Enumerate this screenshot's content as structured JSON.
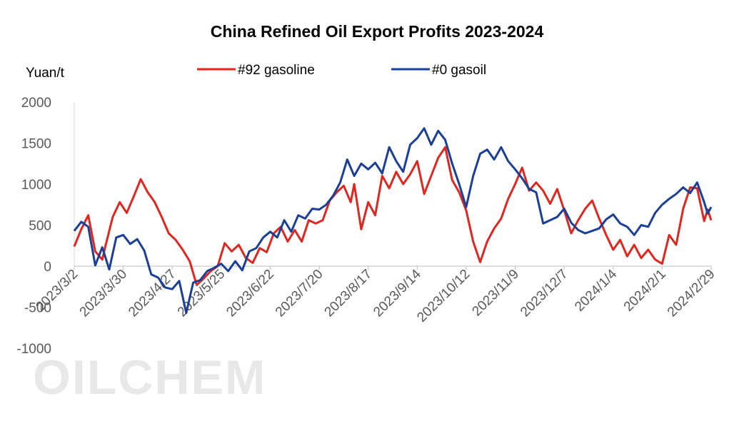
{
  "watermark": "OILCHEM",
  "colors": {
    "gasoline": "#e0261f",
    "gasoil": "#1a3f96"
  },
  "chart_data": {
    "type": "line",
    "title": "China Refined Oil Export Profits 2023-2024",
    "ylabel": "Yuan/t",
    "xlabel": "",
    "ylim": [
      -1000,
      2000
    ],
    "yticks": [
      -1000,
      -500,
      0,
      500,
      1000,
      1500,
      2000
    ],
    "x_tick_labels": [
      "2023/3/2",
      "2023/3/30",
      "2023/4/27",
      "2023/5/25",
      "2023/6/22",
      "2023/7/20",
      "2023/8/17",
      "2023/9/14",
      "2023/10/12",
      "2023/11/9",
      "2023/12/7",
      "2024/1/4",
      "2024/2/1",
      "2024/2/29"
    ],
    "x_range": [
      "2023/3/2",
      "2024/2/29"
    ],
    "grid": false,
    "legend": "top",
    "series": [
      {
        "name": "#92 gasoline",
        "color": "#e0261f",
        "points": [
          [
            "2023/3/2",
            240
          ],
          [
            "2023/3/6",
            450
          ],
          [
            "2023/3/10",
            620
          ],
          [
            "2023/3/14",
            180
          ],
          [
            "2023/3/18",
            80
          ],
          [
            "2023/3/20",
            260
          ],
          [
            "2023/3/24",
            600
          ],
          [
            "2023/3/28",
            780
          ],
          [
            "2023/4/1",
            650
          ],
          [
            "2023/4/5",
            850
          ],
          [
            "2023/4/9",
            1060
          ],
          [
            "2023/4/13",
            900
          ],
          [
            "2023/4/17",
            780
          ],
          [
            "2023/4/21",
            600
          ],
          [
            "2023/4/25",
            400
          ],
          [
            "2023/4/29",
            320
          ],
          [
            "2023/5/3",
            200
          ],
          [
            "2023/5/7",
            60
          ],
          [
            "2023/5/11",
            -230
          ],
          [
            "2023/5/15",
            -150
          ],
          [
            "2023/5/19",
            -60
          ],
          [
            "2023/5/23",
            0
          ],
          [
            "2023/5/27",
            280
          ],
          [
            "2023/5/31",
            180
          ],
          [
            "2023/6/4",
            260
          ],
          [
            "2023/6/8",
            100
          ],
          [
            "2023/6/12",
            40
          ],
          [
            "2023/6/16",
            220
          ],
          [
            "2023/6/20",
            170
          ],
          [
            "2023/6/24",
            400
          ],
          [
            "2023/6/28",
            480
          ],
          [
            "2023/7/2",
            300
          ],
          [
            "2023/7/6",
            440
          ],
          [
            "2023/7/10",
            300
          ],
          [
            "2023/7/14",
            560
          ],
          [
            "2023/7/18",
            520
          ],
          [
            "2023/7/22",
            560
          ],
          [
            "2023/7/26",
            800
          ],
          [
            "2023/7/30",
            900
          ],
          [
            "2023/8/3",
            980
          ],
          [
            "2023/8/7",
            780
          ],
          [
            "2023/8/9",
            1000
          ],
          [
            "2023/8/13",
            450
          ],
          [
            "2023/8/17",
            780
          ],
          [
            "2023/8/21",
            620
          ],
          [
            "2023/8/25",
            1100
          ],
          [
            "2023/8/29",
            950
          ],
          [
            "2023/9/2",
            1150
          ],
          [
            "2023/9/6",
            1000
          ],
          [
            "2023/9/10",
            1120
          ],
          [
            "2023/9/14",
            1280
          ],
          [
            "2023/9/18",
            880
          ],
          [
            "2023/9/22",
            1100
          ],
          [
            "2023/9/26",
            1320
          ],
          [
            "2023/9/30",
            1450
          ],
          [
            "2023/10/4",
            1050
          ],
          [
            "2023/10/8",
            900
          ],
          [
            "2023/10/12",
            680
          ],
          [
            "2023/10/16",
            300
          ],
          [
            "2023/10/20",
            50
          ],
          [
            "2023/10/24",
            300
          ],
          [
            "2023/10/28",
            460
          ],
          [
            "2023/11/1",
            580
          ],
          [
            "2023/11/5",
            820
          ],
          [
            "2023/11/9",
            1000
          ],
          [
            "2023/11/13",
            1200
          ],
          [
            "2023/11/17",
            920
          ],
          [
            "2023/11/21",
            1020
          ],
          [
            "2023/11/25",
            920
          ],
          [
            "2023/11/29",
            760
          ],
          [
            "2023/12/3",
            940
          ],
          [
            "2023/12/7",
            680
          ],
          [
            "2023/12/11",
            400
          ],
          [
            "2023/12/15",
            560
          ],
          [
            "2023/12/19",
            700
          ],
          [
            "2023/12/23",
            800
          ],
          [
            "2023/12/27",
            580
          ],
          [
            "2023/12/31",
            380
          ],
          [
            "2024/1/4",
            200
          ],
          [
            "2024/1/8",
            320
          ],
          [
            "2024/1/12",
            120
          ],
          [
            "2024/1/16",
            260
          ],
          [
            "2024/1/20",
            100
          ],
          [
            "2024/1/24",
            200
          ],
          [
            "2024/1/28",
            80
          ],
          [
            "2024/2/1",
            30
          ],
          [
            "2024/2/5",
            380
          ],
          [
            "2024/2/9",
            260
          ],
          [
            "2024/2/13",
            700
          ],
          [
            "2024/2/17",
            960
          ],
          [
            "2024/2/21",
            950
          ],
          [
            "2024/2/25",
            550
          ],
          [
            "2024/2/27",
            690
          ],
          [
            "2024/2/29",
            560
          ]
        ]
      },
      {
        "name": "#0 gasoil",
        "color": "#1a3f96",
        "points": [
          [
            "2023/3/2",
            430
          ],
          [
            "2023/3/6",
            540
          ],
          [
            "2023/3/10",
            480
          ],
          [
            "2023/3/14",
            10
          ],
          [
            "2023/3/18",
            230
          ],
          [
            "2023/3/22",
            -40
          ],
          [
            "2023/3/26",
            350
          ],
          [
            "2023/3/30",
            380
          ],
          [
            "2023/4/3",
            270
          ],
          [
            "2023/4/7",
            330
          ],
          [
            "2023/4/11",
            190
          ],
          [
            "2023/4/15",
            -100
          ],
          [
            "2023/4/19",
            -140
          ],
          [
            "2023/4/23",
            -260
          ],
          [
            "2023/4/27",
            -280
          ],
          [
            "2023/5/1",
            -180
          ],
          [
            "2023/5/5",
            -570
          ],
          [
            "2023/5/9",
            -200
          ],
          [
            "2023/5/13",
            -170
          ],
          [
            "2023/5/17",
            -60
          ],
          [
            "2023/5/21",
            -20
          ],
          [
            "2023/5/25",
            30
          ],
          [
            "2023/5/29",
            -60
          ],
          [
            "2023/6/2",
            60
          ],
          [
            "2023/6/6",
            -50
          ],
          [
            "2023/6/10",
            180
          ],
          [
            "2023/6/14",
            220
          ],
          [
            "2023/6/18",
            350
          ],
          [
            "2023/6/22",
            420
          ],
          [
            "2023/6/26",
            350
          ],
          [
            "2023/6/30",
            560
          ],
          [
            "2023/7/4",
            420
          ],
          [
            "2023/7/8",
            620
          ],
          [
            "2023/7/12",
            580
          ],
          [
            "2023/7/16",
            700
          ],
          [
            "2023/7/20",
            690
          ],
          [
            "2023/7/24",
            750
          ],
          [
            "2023/7/28",
            860
          ],
          [
            "2023/8/1",
            1020
          ],
          [
            "2023/8/5",
            1300
          ],
          [
            "2023/8/9",
            1100
          ],
          [
            "2023/8/13",
            1250
          ],
          [
            "2023/8/17",
            1180
          ],
          [
            "2023/8/21",
            1260
          ],
          [
            "2023/8/25",
            1130
          ],
          [
            "2023/8/29",
            1450
          ],
          [
            "2023/9/2",
            1280
          ],
          [
            "2023/9/6",
            1150
          ],
          [
            "2023/9/10",
            1480
          ],
          [
            "2023/9/14",
            1560
          ],
          [
            "2023/9/18",
            1680
          ],
          [
            "2023/9/22",
            1480
          ],
          [
            "2023/9/26",
            1650
          ],
          [
            "2023/9/30",
            1540
          ],
          [
            "2023/10/4",
            1250
          ],
          [
            "2023/10/8",
            1000
          ],
          [
            "2023/10/12",
            720
          ],
          [
            "2023/10/16",
            1100
          ],
          [
            "2023/10/20",
            1370
          ],
          [
            "2023/10/24",
            1420
          ],
          [
            "2023/10/28",
            1300
          ],
          [
            "2023/11/1",
            1450
          ],
          [
            "2023/11/5",
            1280
          ],
          [
            "2023/11/9",
            1180
          ],
          [
            "2023/11/13",
            1070
          ],
          [
            "2023/11/17",
            940
          ],
          [
            "2023/11/21",
            900
          ],
          [
            "2023/11/25",
            520
          ],
          [
            "2023/11/29",
            560
          ],
          [
            "2023/12/3",
            600
          ],
          [
            "2023/12/7",
            700
          ],
          [
            "2023/12/11",
            530
          ],
          [
            "2023/12/15",
            440
          ],
          [
            "2023/12/19",
            400
          ],
          [
            "2023/12/23",
            430
          ],
          [
            "2023/12/27",
            460
          ],
          [
            "2023/12/31",
            570
          ],
          [
            "2024/1/4",
            630
          ],
          [
            "2024/1/8",
            520
          ],
          [
            "2024/1/12",
            480
          ],
          [
            "2024/1/16",
            380
          ],
          [
            "2024/1/20",
            500
          ],
          [
            "2024/1/24",
            480
          ],
          [
            "2024/1/28",
            650
          ],
          [
            "2024/2/1",
            750
          ],
          [
            "2024/2/5",
            820
          ],
          [
            "2024/2/9",
            880
          ],
          [
            "2024/2/13",
            960
          ],
          [
            "2024/2/17",
            890
          ],
          [
            "2024/2/21",
            1020
          ],
          [
            "2024/2/25",
            780
          ],
          [
            "2024/2/27",
            640
          ],
          [
            "2024/2/29",
            720
          ]
        ]
      }
    ]
  }
}
